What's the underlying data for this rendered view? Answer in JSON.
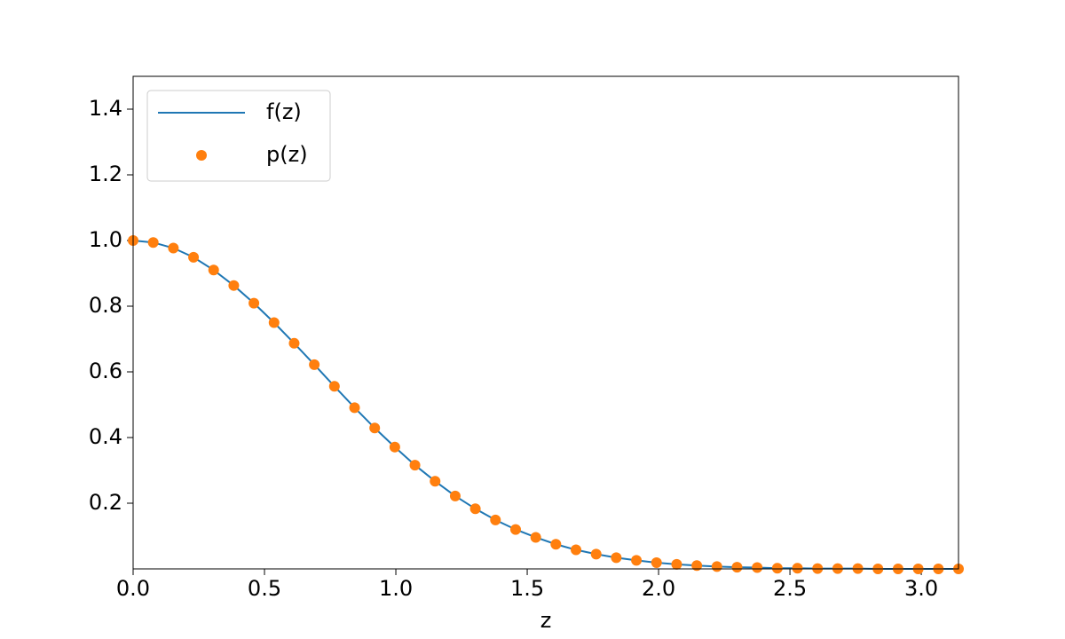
{
  "chart_data": {
    "type": "line",
    "xlabel": "z",
    "x": [
      0,
      0.0766,
      0.1532,
      0.2299,
      0.3065,
      0.3831,
      0.4597,
      0.5364,
      0.613,
      0.6896,
      0.7662,
      0.8429,
      0.9195,
      0.9961,
      1.0727,
      1.1494,
      1.226,
      1.3026,
      1.3792,
      1.4559,
      1.5325,
      1.6091,
      1.6857,
      1.7624,
      1.839,
      1.9156,
      1.9922,
      2.0689,
      2.1455,
      2.2221,
      2.2987,
      2.3753,
      2.452,
      2.5286,
      2.6052,
      2.6818,
      2.7585,
      2.8351,
      2.9117,
      2.9883,
      3.065,
      3.1416
    ],
    "series": [
      {
        "name": "f(z)",
        "color": "#1f77b4",
        "style": "line",
        "values": [
          1.0,
          0.994,
          0.977,
          0.949,
          0.91,
          0.863,
          0.809,
          0.75,
          0.687,
          0.622,
          0.556,
          0.491,
          0.429,
          0.371,
          0.316,
          0.267,
          0.222,
          0.183,
          0.149,
          0.12,
          0.096,
          0.075,
          0.058,
          0.045,
          0.034,
          0.026,
          0.019,
          0.014,
          0.01,
          0.007,
          0.005,
          0.004,
          0.002,
          0.002,
          0.001,
          0.001,
          0.001,
          0,
          0,
          0,
          0,
          0
        ]
      },
      {
        "name": "p(z)",
        "color": "#ff7f0e",
        "style": "markers",
        "values": [
          1.0,
          0.994,
          0.977,
          0.949,
          0.91,
          0.863,
          0.809,
          0.75,
          0.687,
          0.622,
          0.556,
          0.491,
          0.429,
          0.371,
          0.316,
          0.267,
          0.222,
          0.183,
          0.149,
          0.12,
          0.096,
          0.075,
          0.058,
          0.045,
          0.034,
          0.026,
          0.019,
          0.014,
          0.01,
          0.007,
          0.005,
          0.004,
          0.002,
          0.002,
          0.001,
          0.001,
          0.001,
          0,
          0,
          0,
          0,
          0
        ]
      }
    ],
    "xlim": [
      0,
      3.1416
    ],
    "ylim": [
      0,
      1.5
    ],
    "xticks": [
      {
        "value": 0,
        "label": "0.0"
      },
      0.5,
      {
        "value": 1,
        "label": "1.0"
      },
      1.5,
      {
        "value": 2,
        "label": "2.0"
      },
      2.5,
      {
        "value": 3,
        "label": "3.0"
      }
    ],
    "yticks": [
      0.2,
      0.4,
      0.6,
      0.8,
      {
        "value": 1,
        "label": "1.0"
      },
      1.2,
      1.4
    ],
    "legend": "upper-left"
  }
}
